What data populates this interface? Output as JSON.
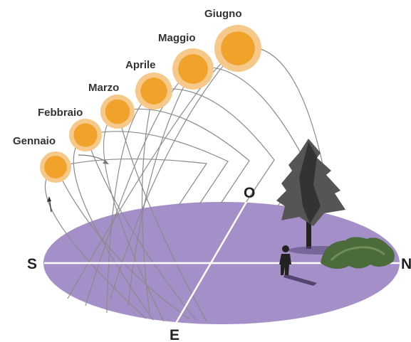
{
  "months": [
    "Gennaio",
    "Febbraio",
    "Marzo",
    "Aprile",
    "Maggio",
    "Giugno"
  ],
  "compass": {
    "south": "S",
    "north": "N",
    "west": "O",
    "east": "E"
  }
}
